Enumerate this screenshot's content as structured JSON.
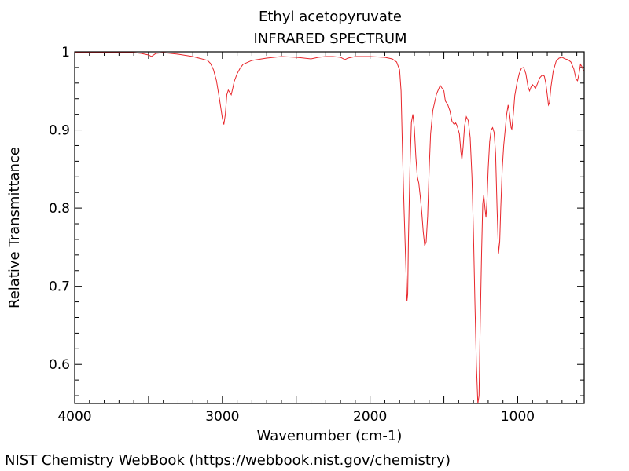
{
  "chart_data": {
    "type": "line",
    "title": "Ethyl acetopyruvate",
    "subtitle": "INFRARED SPECTRUM",
    "xlabel": "Wavenumber (cm-1)",
    "ylabel": "Relative Transmittance",
    "xlim": [
      4000,
      550
    ],
    "ylim": [
      0.55,
      1.0
    ],
    "x_ticks": [
      4000,
      3000,
      2000,
      1000
    ],
    "x_tick_labels": [
      "4000",
      "3000",
      "2000",
      "1000"
    ],
    "y_ticks": [
      1.0,
      0.9,
      0.8,
      0.7,
      0.6
    ],
    "y_tick_labels": [
      "1",
      "0.9",
      "0.8",
      "0.7",
      "0.6"
    ],
    "grid": false,
    "line_color": "#e8262b",
    "series": [
      {
        "points": [
          [
            4000,
            0.999
          ],
          [
            3800,
            0.999
          ],
          [
            3600,
            0.999
          ],
          [
            3550,
            0.998
          ],
          [
            3500,
            0.996
          ],
          [
            3480,
            0.994
          ],
          [
            3450,
            0.998
          ],
          [
            3400,
            0.999
          ],
          [
            3300,
            0.997
          ],
          [
            3200,
            0.994
          ],
          [
            3100,
            0.989
          ],
          [
            3080,
            0.985
          ],
          [
            3060,
            0.977
          ],
          [
            3040,
            0.963
          ],
          [
            3020,
            0.94
          ],
          [
            3000,
            0.915
          ],
          [
            2990,
            0.907
          ],
          [
            2980,
            0.92
          ],
          [
            2970,
            0.945
          ],
          [
            2960,
            0.951
          ],
          [
            2950,
            0.948
          ],
          [
            2940,
            0.945
          ],
          [
            2930,
            0.953
          ],
          [
            2920,
            0.962
          ],
          [
            2900,
            0.972
          ],
          [
            2880,
            0.979
          ],
          [
            2860,
            0.984
          ],
          [
            2800,
            0.989
          ],
          [
            2700,
            0.992
          ],
          [
            2600,
            0.994
          ],
          [
            2500,
            0.993
          ],
          [
            2400,
            0.991
          ],
          [
            2350,
            0.993
          ],
          [
            2300,
            0.994
          ],
          [
            2250,
            0.994
          ],
          [
            2200,
            0.993
          ],
          [
            2170,
            0.99
          ],
          [
            2150,
            0.992
          ],
          [
            2100,
            0.994
          ],
          [
            2000,
            0.994
          ],
          [
            1900,
            0.993
          ],
          [
            1850,
            0.991
          ],
          [
            1820,
            0.987
          ],
          [
            1800,
            0.977
          ],
          [
            1790,
            0.95
          ],
          [
            1780,
            0.87
          ],
          [
            1770,
            0.8
          ],
          [
            1760,
            0.74
          ],
          [
            1750,
            0.681
          ],
          [
            1745,
            0.69
          ],
          [
            1740,
            0.76
          ],
          [
            1730,
            0.85
          ],
          [
            1720,
            0.91
          ],
          [
            1710,
            0.92
          ],
          [
            1700,
            0.902
          ],
          [
            1690,
            0.866
          ],
          [
            1680,
            0.84
          ],
          [
            1670,
            0.832
          ],
          [
            1660,
            0.815
          ],
          [
            1650,
            0.795
          ],
          [
            1640,
            0.77
          ],
          [
            1630,
            0.752
          ],
          [
            1620,
            0.757
          ],
          [
            1610,
            0.79
          ],
          [
            1600,
            0.848
          ],
          [
            1590,
            0.895
          ],
          [
            1575,
            0.925
          ],
          [
            1550,
            0.946
          ],
          [
            1525,
            0.957
          ],
          [
            1500,
            0.95
          ],
          [
            1490,
            0.937
          ],
          [
            1475,
            0.933
          ],
          [
            1460,
            0.925
          ],
          [
            1445,
            0.911
          ],
          [
            1430,
            0.907
          ],
          [
            1420,
            0.909
          ],
          [
            1410,
            0.905
          ],
          [
            1395,
            0.895
          ],
          [
            1385,
            0.872
          ],
          [
            1378,
            0.862
          ],
          [
            1370,
            0.878
          ],
          [
            1360,
            0.905
          ],
          [
            1348,
            0.917
          ],
          [
            1335,
            0.912
          ],
          [
            1322,
            0.89
          ],
          [
            1310,
            0.84
          ],
          [
            1300,
            0.77
          ],
          [
            1290,
            0.68
          ],
          [
            1280,
            0.6
          ],
          [
            1270,
            0.55
          ],
          [
            1262,
            0.56
          ],
          [
            1255,
            0.64
          ],
          [
            1245,
            0.74
          ],
          [
            1237,
            0.805
          ],
          [
            1230,
            0.817
          ],
          [
            1222,
            0.8
          ],
          [
            1215,
            0.788
          ],
          [
            1208,
            0.81
          ],
          [
            1200,
            0.85
          ],
          [
            1190,
            0.885
          ],
          [
            1180,
            0.9
          ],
          [
            1170,
            0.903
          ],
          [
            1160,
            0.897
          ],
          [
            1150,
            0.87
          ],
          [
            1140,
            0.8
          ],
          [
            1130,
            0.742
          ],
          [
            1122,
            0.757
          ],
          [
            1115,
            0.8
          ],
          [
            1105,
            0.85
          ],
          [
            1095,
            0.88
          ],
          [
            1085,
            0.9
          ],
          [
            1075,
            0.92
          ],
          [
            1065,
            0.932
          ],
          [
            1055,
            0.92
          ],
          [
            1045,
            0.903
          ],
          [
            1040,
            0.901
          ],
          [
            1030,
            0.92
          ],
          [
            1020,
            0.944
          ],
          [
            1005,
            0.96
          ],
          [
            990,
            0.972
          ],
          [
            975,
            0.979
          ],
          [
            960,
            0.98
          ],
          [
            945,
            0.972
          ],
          [
            930,
            0.955
          ],
          [
            920,
            0.95
          ],
          [
            910,
            0.955
          ],
          [
            900,
            0.958
          ],
          [
            890,
            0.956
          ],
          [
            880,
            0.953
          ],
          [
            865,
            0.96
          ],
          [
            850,
            0.967
          ],
          [
            835,
            0.97
          ],
          [
            820,
            0.969
          ],
          [
            810,
            0.96
          ],
          [
            800,
            0.945
          ],
          [
            792,
            0.932
          ],
          [
            785,
            0.935
          ],
          [
            775,
            0.955
          ],
          [
            760,
            0.975
          ],
          [
            740,
            0.988
          ],
          [
            720,
            0.992
          ],
          [
            700,
            0.993
          ],
          [
            680,
            0.991
          ],
          [
            660,
            0.99
          ],
          [
            640,
            0.987
          ],
          [
            620,
            0.978
          ],
          [
            605,
            0.965
          ],
          [
            595,
            0.963
          ],
          [
            585,
            0.972
          ],
          [
            575,
            0.984
          ],
          [
            565,
            0.981
          ],
          [
            555,
            0.976
          ],
          [
            550,
            0.975
          ]
        ]
      }
    ]
  },
  "footer": {
    "credit": "NIST Chemistry WebBook (https://webbook.nist.gov/chemistry)"
  }
}
